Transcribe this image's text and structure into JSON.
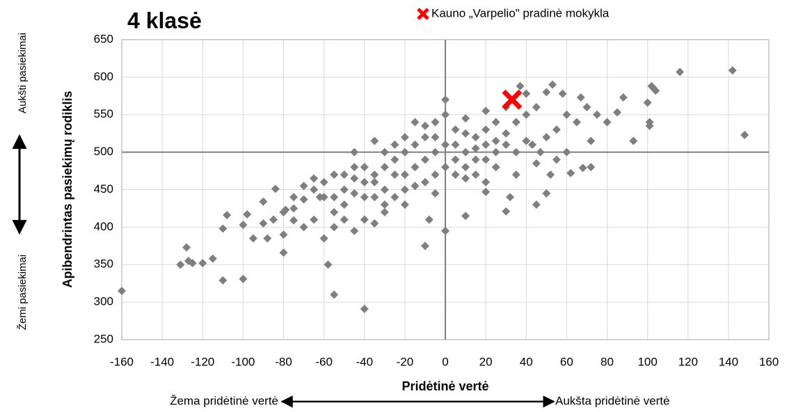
{
  "chart_data": {
    "type": "scatter",
    "title": "4 klasė",
    "xlabel": "Pridėtinė vertė",
    "ylabel": "Apibendrintas pasiekimų rodiklis",
    "annotations": {
      "high": "Aukšti pasiekimai",
      "low": "Žemi pasiekimai",
      "low_value": "Žema pridėtinė vertė",
      "high_value": "Aukšta pridėtinė vertė"
    },
    "xlim": [
      -160,
      160
    ],
    "xticks": [
      -160,
      -140,
      -120,
      -100,
      -80,
      -60,
      -40,
      -20,
      0,
      20,
      40,
      60,
      80,
      100,
      120,
      140,
      160
    ],
    "ylim": [
      250,
      650
    ],
    "yticks": [
      250,
      300,
      350,
      400,
      450,
      500,
      550,
      600,
      650
    ],
    "grid": true,
    "reference_lines": {
      "x": 0,
      "y": 500
    },
    "series": [
      {
        "color": "#7f7f7f",
        "marker": "diamond",
        "x": [
          -160,
          -128,
          -131,
          -127,
          -125,
          -120,
          -115,
          -110,
          -110,
          -108,
          -100,
          -100,
          -98,
          -95,
          -90,
          -88,
          -84,
          -80,
          -79,
          -75,
          -70,
          -65,
          -62,
          -58,
          -55,
          -40,
          -45,
          -40,
          -35,
          -20,
          -10,
          -8,
          0,
          10,
          20,
          30,
          32,
          45,
          50,
          52,
          55,
          62,
          68,
          72,
          72,
          60,
          75,
          70,
          80,
          85,
          88,
          93,
          100,
          101,
          101,
          102,
          103,
          104,
          116,
          142,
          148,
          53,
          58,
          50,
          40,
          37,
          45,
          60,
          65,
          67,
          55,
          50,
          43,
          47,
          35,
          25,
          20,
          15,
          -5,
          -15,
          -25,
          -30,
          -35,
          -45,
          -50,
          -55,
          -60,
          -65,
          -70,
          -75,
          -85,
          -90,
          -80,
          -60,
          -55,
          -50,
          -30,
          -20,
          -10,
          -5,
          0,
          5,
          10,
          15,
          20,
          25,
          30,
          5,
          10,
          20,
          -5,
          0,
          -10,
          -15,
          -20,
          -25,
          -30,
          -35,
          -40,
          -45,
          -50,
          -40,
          -30,
          -35,
          -20,
          -15,
          -10,
          -5,
          0,
          5,
          10,
          15,
          25,
          30,
          35,
          40,
          35,
          40,
          45,
          -60,
          -70,
          -55,
          -45,
          -25,
          -10,
          0,
          10,
          20,
          30,
          -40,
          -30,
          -25,
          -65,
          -50,
          -15,
          -5,
          5,
          15,
          25,
          20,
          10,
          -20,
          -35,
          -45,
          -55,
          -80,
          -75
        ],
        "values": [
          315,
          373,
          350,
          355,
          352,
          352,
          358,
          329,
          398,
          416,
          403,
          331,
          417,
          385,
          434,
          385,
          451,
          366,
          423,
          409,
          437,
          450,
          440,
          350,
          310,
          291,
          395,
          410,
          405,
          430,
          375,
          410,
          395,
          415,
          447,
          421,
          440,
          430,
          445,
          470,
          490,
          472,
          479,
          480,
          515,
          500,
          550,
          560,
          540,
          553,
          573,
          515,
          566,
          540,
          535,
          588,
          585,
          582,
          607,
          609,
          523,
          590,
          578,
          580,
          578,
          588,
          560,
          550,
          540,
          573,
          530,
          520,
          510,
          500,
          470,
          480,
          460,
          490,
          470,
          455,
          470,
          450,
          440,
          445,
          430,
          420,
          440,
          410,
          400,
          425,
          410,
          405,
          390,
          385,
          400,
          410,
          420,
          470,
          490,
          500,
          510,
          490,
          500,
          520,
          530,
          540,
          510,
          530,
          545,
          555,
          540,
          570,
          520,
          510,
          500,
          490,
          480,
          470,
          460,
          465,
          450,
          480,
          500,
          515,
          520,
          480,
          460,
          445,
          480,
          470,
          465,
          470,
          500,
          525,
          540,
          550,
          500,
          515,
          485,
          460,
          455,
          470,
          500,
          510,
          535,
          550,
          525,
          510,
          560,
          440,
          430,
          440,
          465,
          470,
          540,
          520,
          510,
          505,
          515,
          490,
          480,
          450,
          460,
          480,
          440,
          420,
          440
        ]
      },
      {
        "name": "Kauno „Varpelio\" pradinė mokykla",
        "color": "#ff0000",
        "marker": "x",
        "x": [
          33
        ],
        "values": [
          570
        ]
      }
    ]
  }
}
